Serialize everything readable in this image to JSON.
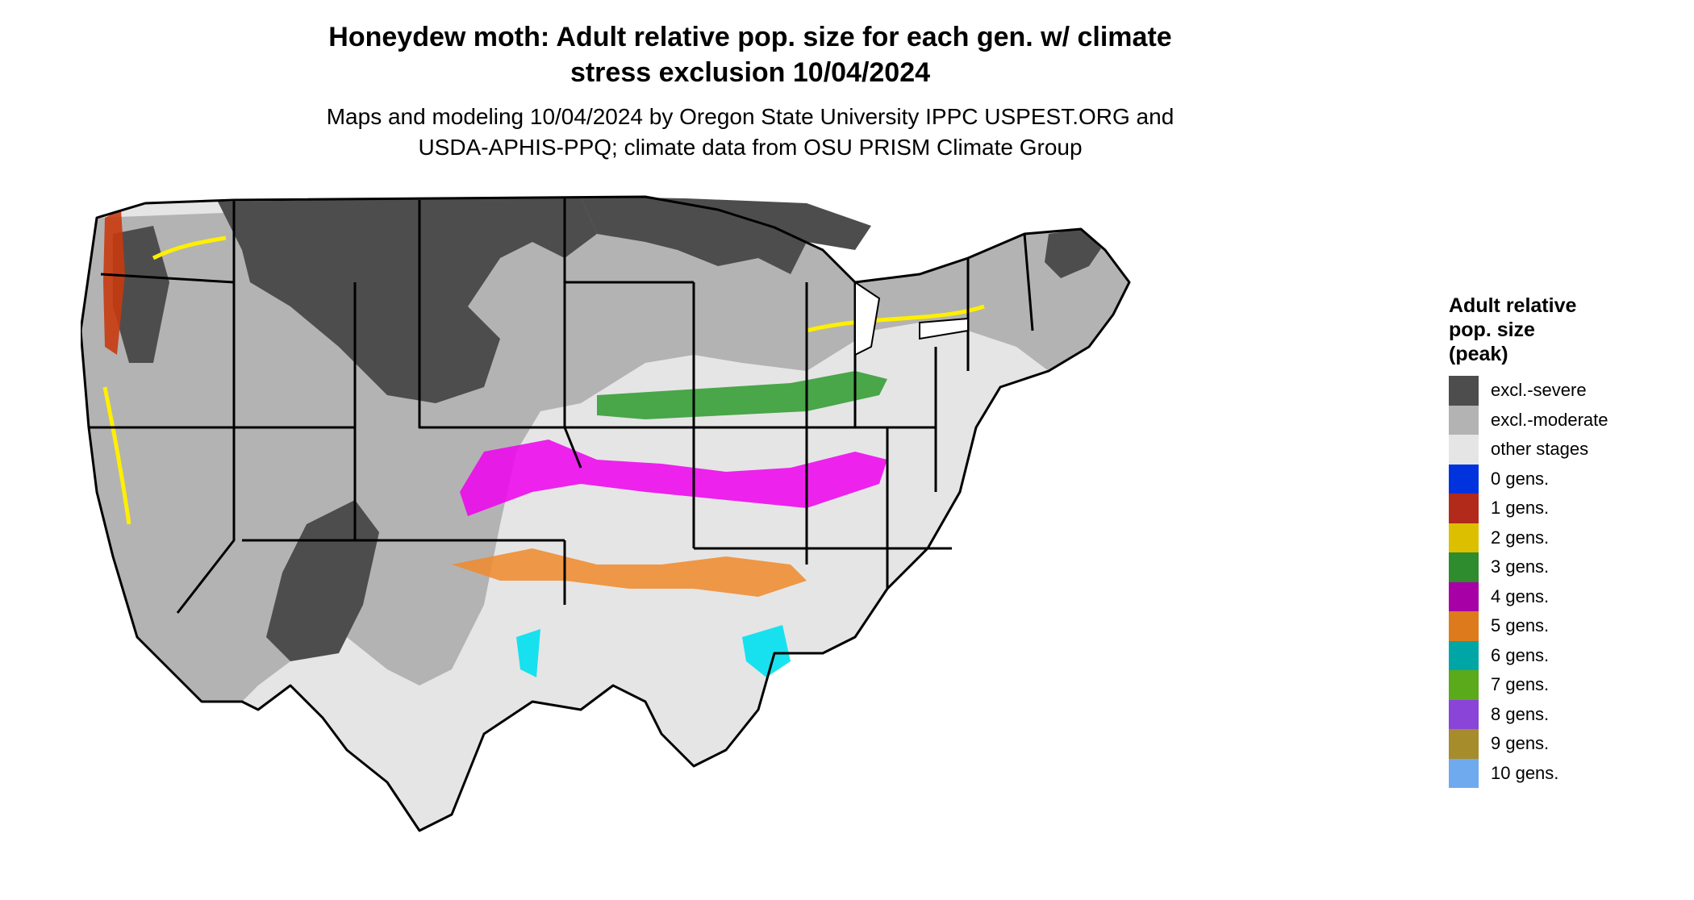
{
  "title_line1": "Honeydew moth: Adult relative pop. size for each gen. w/ climate",
  "title_line2": "stress exclusion 10/04/2024",
  "subtitle_line1": "Maps and modeling 10/04/2024 by Oregon State University IPPC USPEST.ORG and",
  "subtitle_line2": "USDA-APHIS-PPQ; climate data from OSU PRISM Climate Group",
  "legend": {
    "title_line1": "Adult relative",
    "title_line2": "pop. size",
    "title_line3": "(peak)",
    "items": [
      {
        "label": "excl.-severe",
        "color": "#4d4d4d"
      },
      {
        "label": "excl.-moderate",
        "color": "#b3b3b3"
      },
      {
        "label": "other stages",
        "color": "#e5e5e5"
      },
      {
        "label": "0 gens.",
        "color": "#0033dd"
      },
      {
        "label": "1 gens.",
        "color": "#b22a1a"
      },
      {
        "label": "2 gens.",
        "color": "#dcc000"
      },
      {
        "label": "3 gens.",
        "color": "#2e8b2e"
      },
      {
        "label": "4 gens.",
        "color": "#a600a6"
      },
      {
        "label": "5 gens.",
        "color": "#dd7a1c"
      },
      {
        "label": "6 gens.",
        "color": "#00a6a6"
      },
      {
        "label": "7 gens.",
        "color": "#5aaa1c"
      },
      {
        "label": "8 gens.",
        "color": "#8a44d8"
      },
      {
        "label": "9 gens.",
        "color": "#a68c2a"
      },
      {
        "label": "10 gens.",
        "color": "#70aaee"
      }
    ]
  }
}
